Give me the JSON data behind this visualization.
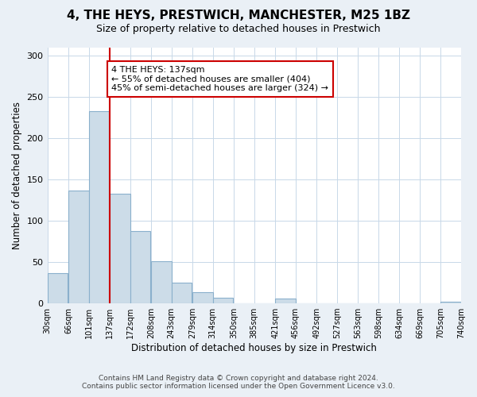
{
  "title": "4, THE HEYS, PRESTWICH, MANCHESTER, M25 1BZ",
  "subtitle": "Size of property relative to detached houses in Prestwich",
  "xlabel": "Distribution of detached houses by size in Prestwich",
  "ylabel": "Number of detached properties",
  "bar_left_edges": [
    30,
    66,
    101,
    137,
    172,
    208,
    243,
    279,
    314,
    350,
    385,
    421,
    456,
    492,
    527,
    563,
    598,
    634,
    669,
    705
  ],
  "bar_heights": [
    37,
    137,
    233,
    133,
    88,
    51,
    25,
    14,
    7,
    0,
    0,
    6,
    0,
    0,
    0,
    0,
    0,
    0,
    0,
    2
  ],
  "bin_width": 35,
  "tick_labels": [
    "30sqm",
    "66sqm",
    "101sqm",
    "137sqm",
    "172sqm",
    "208sqm",
    "243sqm",
    "279sqm",
    "314sqm",
    "350sqm",
    "385sqm",
    "421sqm",
    "456sqm",
    "492sqm",
    "527sqm",
    "563sqm",
    "598sqm",
    "634sqm",
    "669sqm",
    "705sqm",
    "740sqm"
  ],
  "bar_color": "#ccdce8",
  "bar_edge_color": "#8ab0cc",
  "property_line_x": 137,
  "ylim": [
    0,
    310
  ],
  "yticks": [
    0,
    50,
    100,
    150,
    200,
    250,
    300
  ],
  "annotation_line1": "4 THE HEYS: 137sqm",
  "annotation_line2": "← 55% of detached houses are smaller (404)",
  "annotation_line3": "45% of semi-detached houses are larger (324) →",
  "annotation_box_color": "#ffffff",
  "annotation_box_edge_color": "#cc0000",
  "vline_color": "#cc0000",
  "footer_line1": "Contains HM Land Registry data © Crown copyright and database right 2024.",
  "footer_line2": "Contains public sector information licensed under the Open Government Licence v3.0.",
  "background_color": "#eaf0f6",
  "plot_background_color": "#ffffff",
  "grid_color": "#c8d8e8",
  "title_fontsize": 11,
  "subtitle_fontsize": 9,
  "xlabel_fontsize": 8.5,
  "ylabel_fontsize": 8.5,
  "tick_fontsize": 7,
  "annotation_fontsize": 8,
  "footer_fontsize": 6.5
}
